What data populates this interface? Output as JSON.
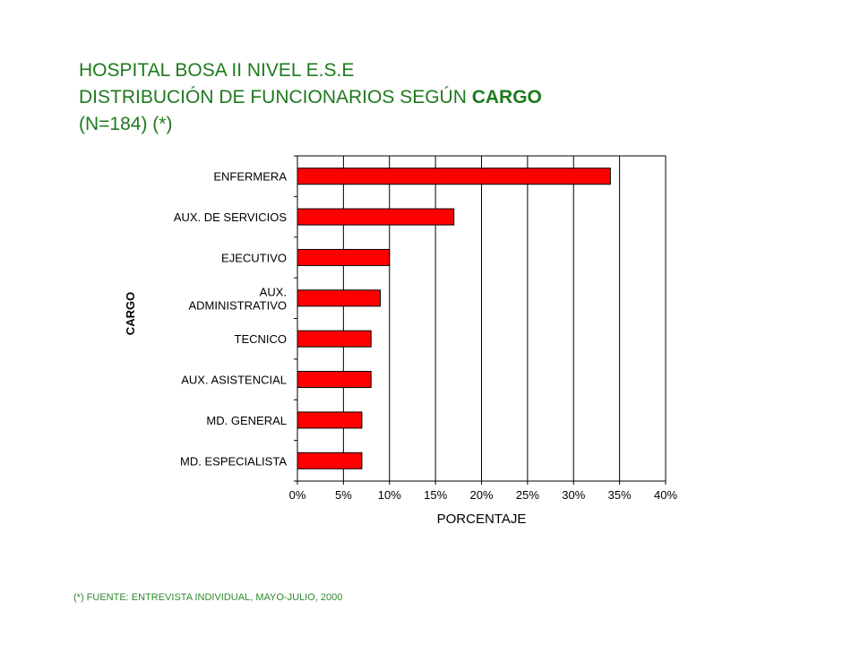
{
  "header": {
    "line1": "HOSPITAL BOSA II NIVEL E.S.E",
    "line2_prefix": "DISTRIBUCIÓN DE FUNCIONARIOS SEGÚN ",
    "line2_bold": "CARGO",
    "line3": "(N=184) (*)"
  },
  "chart_data": {
    "type": "bar",
    "orientation": "horizontal",
    "categories": [
      "ENFERMERA",
      "AUX. DE SERVICIOS",
      "EJECUTIVO",
      "AUX.|ADMINISTRATIVO",
      "TECNICO",
      "AUX. ASISTENCIAL",
      "MD. GENERAL",
      "MD. ESPECIALISTA"
    ],
    "values": [
      34,
      17,
      10,
      9,
      8,
      8,
      7,
      7
    ],
    "xlabel": "PORCENTAJE",
    "ylabel": "CARGO",
    "xlim": [
      0,
      40
    ],
    "xticks": [
      "0%",
      "5%",
      "10%",
      "15%",
      "20%",
      "25%",
      "30%",
      "35%",
      "40%"
    ],
    "grid": true,
    "bar_color": "#ff0000"
  },
  "footnote": "(*) FUENTE: ENTREVISTA INDIVIDUAL, MAYO-JULIO, 2000"
}
